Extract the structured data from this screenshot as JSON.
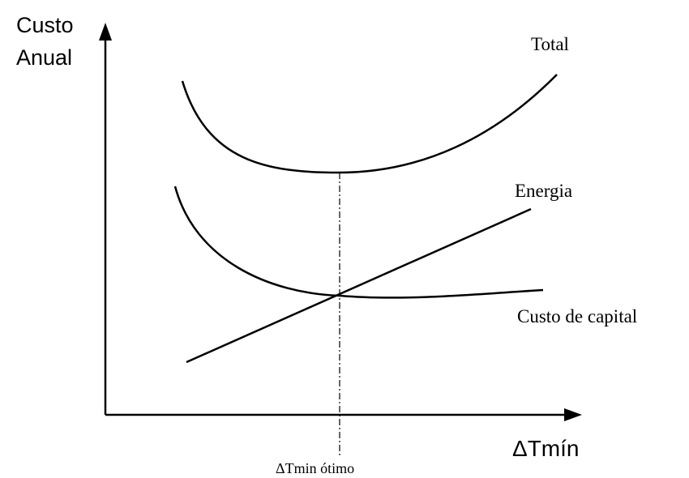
{
  "y_axis_label": [
    "Custo",
    "Anual"
  ],
  "x_axis_label": "ΔTmín",
  "optimum_label": "ΔTmin ótimo",
  "curves": [
    {
      "label": "Total"
    },
    {
      "label": "Energia"
    },
    {
      "label": "Custo de capital"
    }
  ]
}
